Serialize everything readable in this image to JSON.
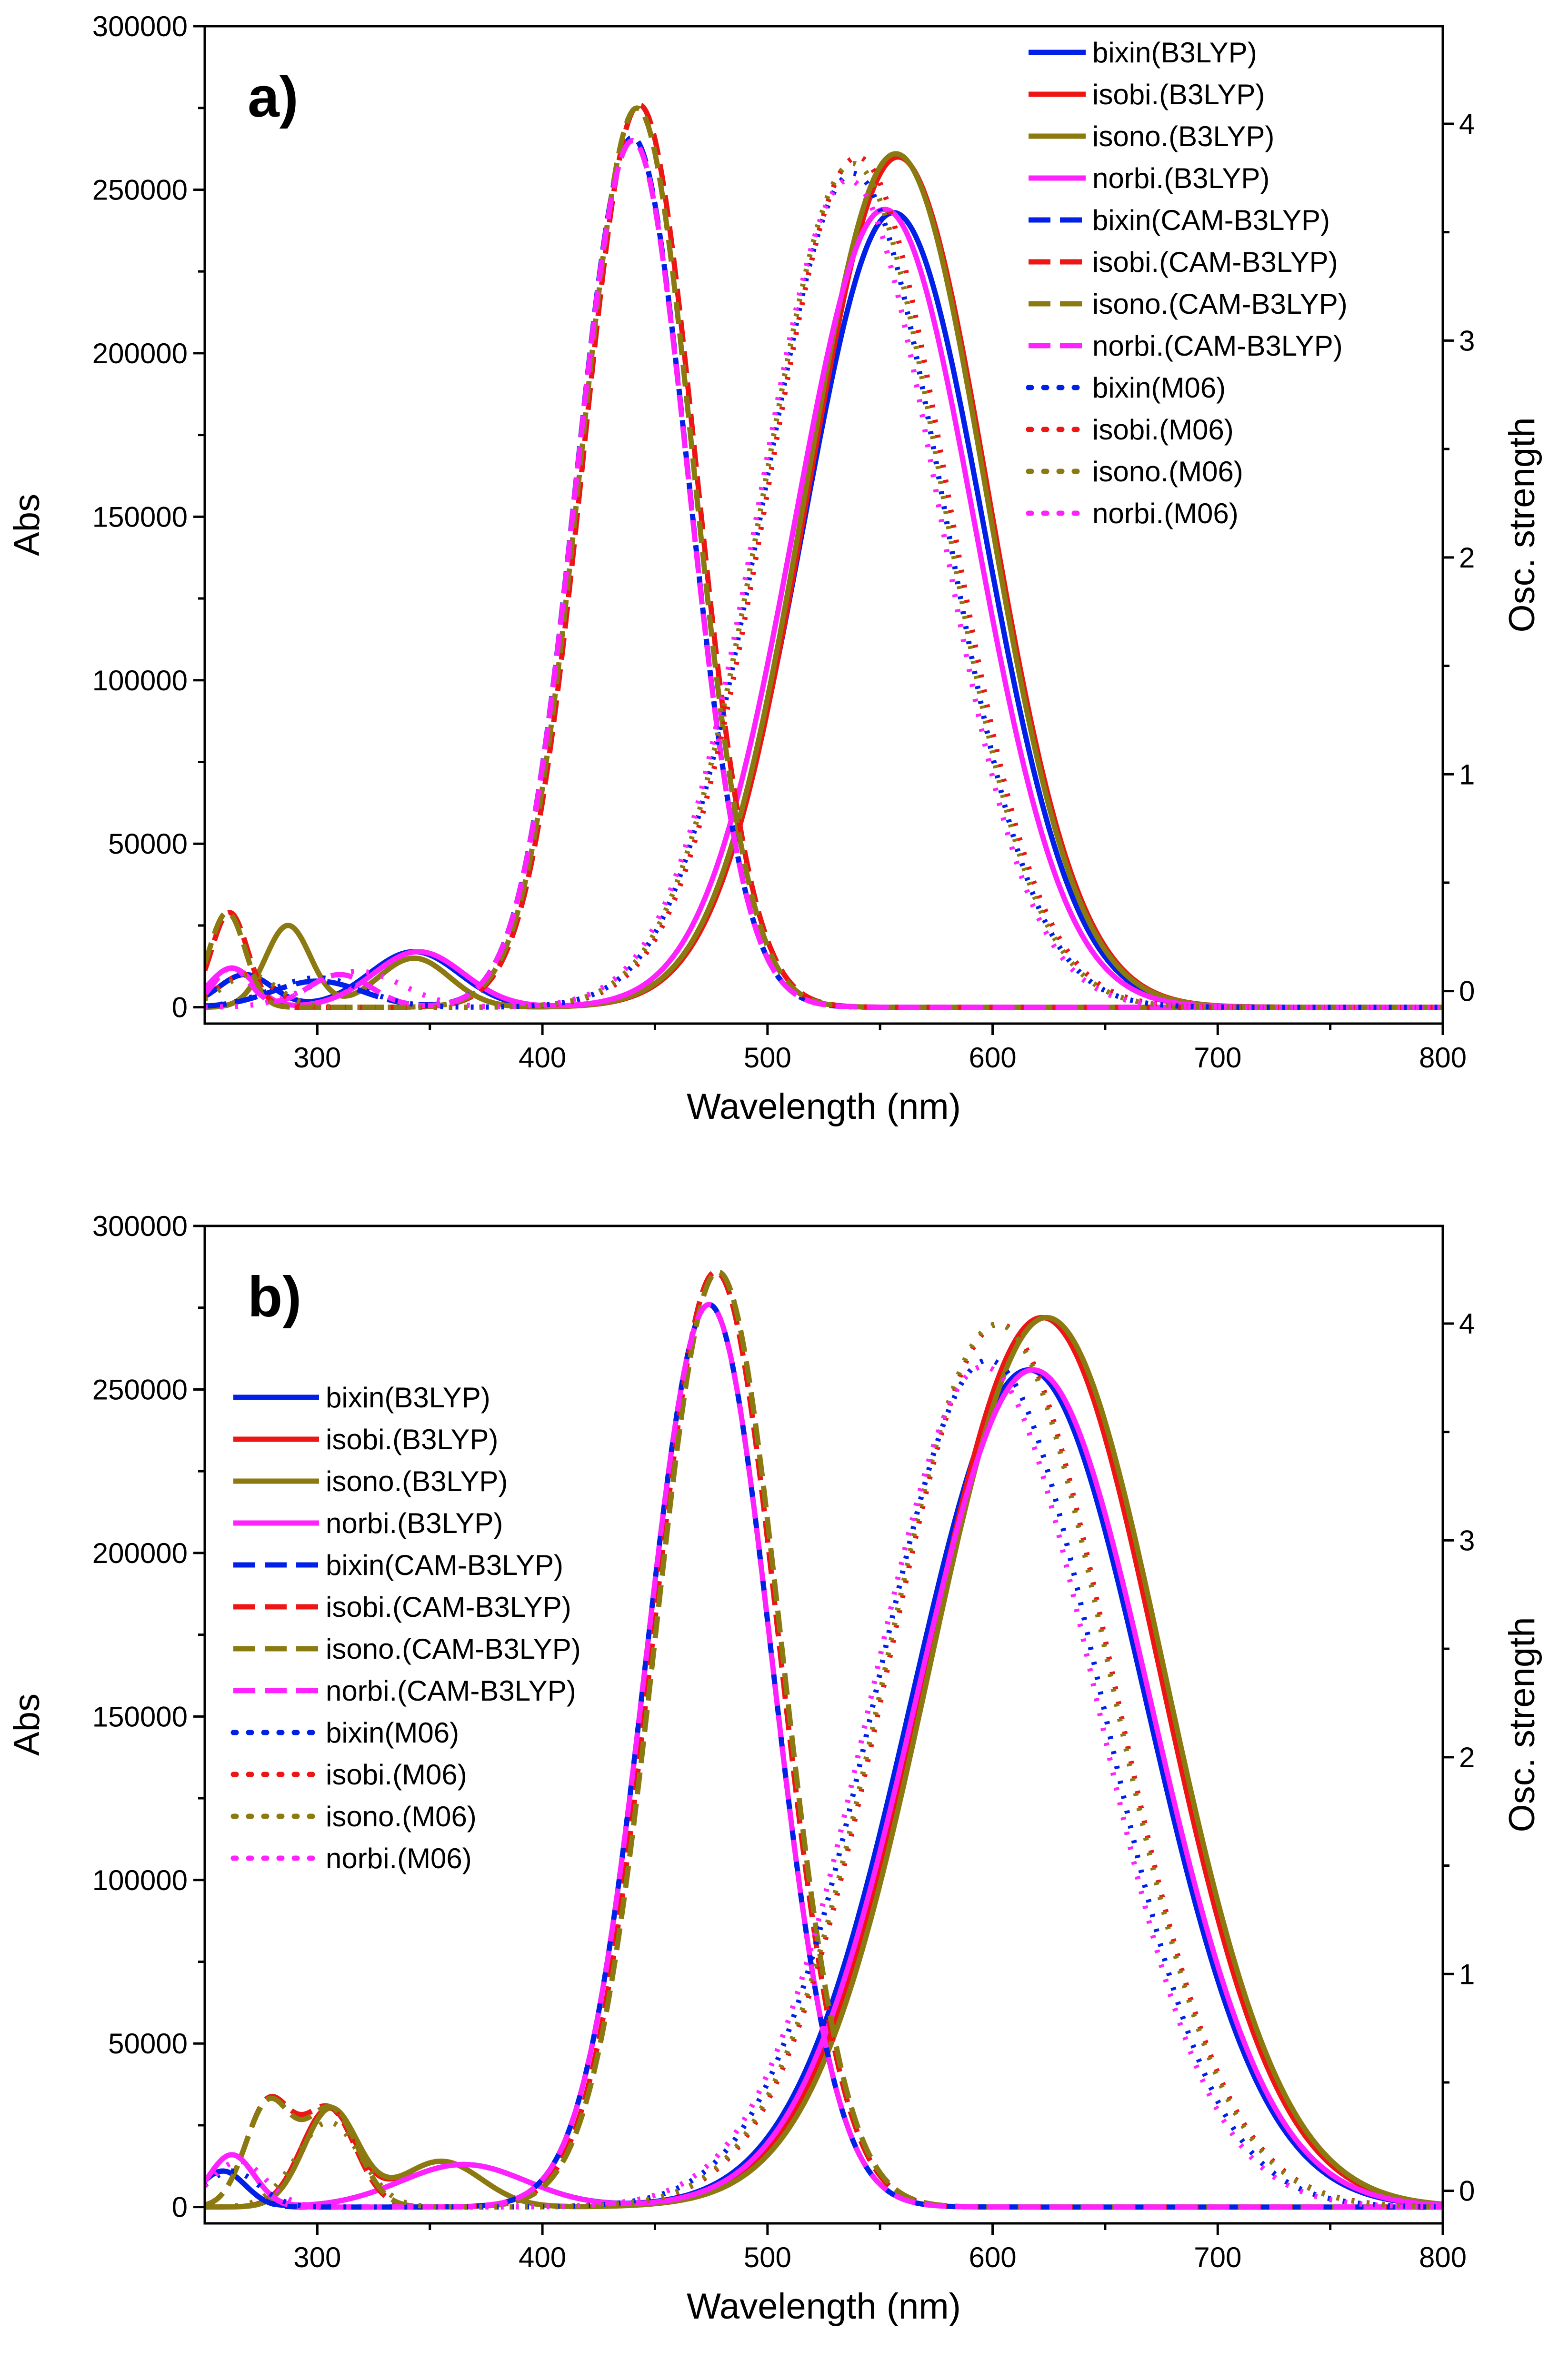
{
  "chart_data": [
    {
      "panel_label": "a)",
      "type": "line",
      "xlabel": "Wavelength (nm)",
      "ylabel": "Abs",
      "y2label": "Osc. strength",
      "xlim": [
        250,
        800
      ],
      "ylim": [
        -5000,
        300000
      ],
      "y2lim": [
        -0.15,
        4.45
      ],
      "xticks": [
        300,
        400,
        500,
        600,
        700,
        800
      ],
      "xtick_labels": [
        "300",
        "400",
        "500",
        "600",
        "700",
        "800"
      ],
      "yticks": [
        0,
        50000,
        100000,
        150000,
        200000,
        250000,
        300000
      ],
      "ytick_labels": [
        "0",
        "50000",
        "100000",
        "150000",
        "200000",
        "250000",
        "300000"
      ],
      "y2ticks": [
        0,
        1,
        2,
        3,
        4
      ],
      "y2tick_labels": [
        "0",
        "1",
        "2",
        "3",
        "4"
      ],
      "legend_position": "top-right",
      "series": [
        {
          "name": "bixin(B3LYP)",
          "method": "B3LYP",
          "molecule": "bixin",
          "peaks": [
            [
              556,
              243000,
              40
            ],
            [
              343,
              17000,
              20
            ],
            [
              268,
              10000,
              12
            ]
          ]
        },
        {
          "name": "isobi.(B3LYP)",
          "method": "B3LYP",
          "molecule": "isobi",
          "peaks": [
            [
              558,
              260000,
              40
            ],
            [
              287,
              25000,
              10
            ],
            [
              343,
              15000,
              16
            ]
          ]
        },
        {
          "name": "isono.(B3LYP)",
          "method": "B3LYP",
          "molecule": "isono",
          "peaks": [
            [
              557,
              261000,
              40
            ],
            [
              287,
              25000,
              10
            ],
            [
              343,
              15000,
              16
            ]
          ]
        },
        {
          "name": "norbi.(B3LYP)",
          "method": "B3LYP",
          "molecule": "norbi",
          "peaks": [
            [
              552,
              244000,
              40
            ],
            [
              345,
              17000,
              20
            ],
            [
              262,
              12000,
              10
            ]
          ]
        },
        {
          "name": "bixin(CAM-B3LYP)",
          "method": "CAM-B3LYP",
          "molecule": "bixin",
          "peaks": [
            [
              440,
              266000,
              25
            ],
            [
              300,
              8000,
              20
            ]
          ]
        },
        {
          "name": "isobi.(CAM-B3LYP)",
          "method": "CAM-B3LYP",
          "molecule": "isobi",
          "peaks": [
            [
              443,
              276000,
              25
            ],
            [
              261,
              29000,
              8
            ]
          ]
        },
        {
          "name": "isono.(CAM-B3LYP)",
          "method": "CAM-B3LYP",
          "molecule": "isono",
          "peaks": [
            [
              442,
              275000,
              25
            ],
            [
              260,
              29000,
              8
            ]
          ]
        },
        {
          "name": "norbi.(CAM-B3LYP)",
          "method": "CAM-B3LYP",
          "molecule": "norbi",
          "peaks": [
            [
              440,
              265000,
              25
            ],
            [
              262,
              12000,
              8
            ],
            [
              310,
              10000,
              14
            ]
          ]
        },
        {
          "name": "bixin(M06)",
          "method": "M06",
          "molecule": "bixin",
          "peaks": [
            [
              538,
              255000,
              40
            ],
            [
              300,
              9000,
              20
            ]
          ]
        },
        {
          "name": "isobi.(M06)",
          "method": "M06",
          "molecule": "isobi",
          "peaks": [
            [
              540,
              260000,
              40
            ],
            [
              268,
              10000,
              12
            ]
          ]
        },
        {
          "name": "isono.(M06)",
          "method": "M06",
          "molecule": "isono",
          "peaks": [
            [
              538,
              258000,
              40
            ],
            [
              270,
              10000,
              12
            ]
          ]
        },
        {
          "name": "norbi.(M06)",
          "method": "M06",
          "molecule": "norbi",
          "peaks": [
            [
              536,
              253000,
              40
            ],
            [
              318,
              11000,
              20
            ]
          ]
        }
      ]
    },
    {
      "panel_label": "b)",
      "type": "line",
      "xlabel": "Wavelength (nm)",
      "ylabel": "Abs",
      "y2label": "Osc. strength",
      "xlim": [
        250,
        800
      ],
      "ylim": [
        -5000,
        300000
      ],
      "y2lim": [
        -0.15,
        4.45
      ],
      "xticks": [
        300,
        400,
        500,
        600,
        700,
        800
      ],
      "xtick_labels": [
        "300",
        "400",
        "500",
        "600",
        "700",
        "800"
      ],
      "yticks": [
        0,
        50000,
        100000,
        150000,
        200000,
        250000,
        300000
      ],
      "ytick_labels": [
        "0",
        "50000",
        "100000",
        "150000",
        "200000",
        "250000",
        "300000"
      ],
      "y2ticks": [
        0,
        1,
        2,
        3,
        4
      ],
      "y2tick_labels": [
        "0",
        "1",
        "2",
        "3",
        "4"
      ],
      "legend_position": "middle-left",
      "series": [
        {
          "name": "bixin(B3LYP)",
          "method": "B3LYP",
          "molecule": "bixin",
          "peaks": [
            [
              616,
              256000,
              52
            ],
            [
              258,
              11000,
              10
            ],
            [
              365,
              13000,
              28
            ]
          ]
        },
        {
          "name": "isobi.(B3LYP)",
          "method": "B3LYP",
          "molecule": "isobi",
          "peaks": [
            [
              622,
              272000,
              52
            ],
            [
              305,
              30000,
              12
            ],
            [
              355,
              14000,
              18
            ]
          ]
        },
        {
          "name": "isono.(B3LYP)",
          "method": "B3LYP",
          "molecule": "isono",
          "peaks": [
            [
              624,
              272000,
              52
            ],
            [
              306,
              30000,
              12
            ],
            [
              355,
              14000,
              18
            ]
          ]
        },
        {
          "name": "norbi.(B3LYP)",
          "method": "B3LYP",
          "molecule": "norbi",
          "peaks": [
            [
              618,
              256000,
              52
            ],
            [
              262,
              16000,
              10
            ],
            [
              365,
              13000,
              28
            ]
          ]
        },
        {
          "name": "bixin(CAM-B3LYP)",
          "method": "CAM-B3LYP",
          "molecule": "bixin",
          "peaks": [
            [
              474,
              276000,
              28
            ],
            [
              258,
              11000,
              10
            ]
          ]
        },
        {
          "name": "isobi.(CAM-B3LYP)",
          "method": "CAM-B3LYP",
          "molecule": "isobi",
          "peaks": [
            [
              477,
              286000,
              28
            ],
            [
              278,
              31000,
              10
            ],
            [
              305,
              30000,
              12
            ]
          ]
        },
        {
          "name": "isono.(CAM-B3LYP)",
          "method": "CAM-B3LYP",
          "molecule": "isono",
          "peaks": [
            [
              478,
              286000,
              28
            ],
            [
              278,
              31000,
              10
            ],
            [
              306,
              30000,
              12
            ]
          ]
        },
        {
          "name": "norbi.(CAM-B3LYP)",
          "method": "CAM-B3LYP",
          "molecule": "norbi",
          "peaks": [
            [
              474,
              276000,
              28
            ],
            [
              262,
              16000,
              10
            ]
          ]
        },
        {
          "name": "bixin(M06)",
          "method": "M06",
          "molecule": "bixin",
          "peaks": [
            [
              598,
              259000,
              50
            ],
            [
              262,
              11000,
              12
            ]
          ]
        },
        {
          "name": "isobi.(M06)",
          "method": "M06",
          "molecule": "isobi",
          "peaks": [
            [
              603,
              270000,
              50
            ],
            [
              305,
              26000,
              14
            ]
          ]
        },
        {
          "name": "isono.(M06)",
          "method": "M06",
          "molecule": "isono",
          "peaks": [
            [
              602,
              270000,
              50
            ],
            [
              305,
              26000,
              14
            ]
          ]
        },
        {
          "name": "norbi.(M06)",
          "method": "M06",
          "molecule": "norbi",
          "peaks": [
            [
              596,
              257000,
              50
            ],
            [
              265,
              14000,
              12
            ]
          ]
        }
      ]
    }
  ],
  "colors": {
    "bixin": "#0020e8",
    "isobi": "#ee1515",
    "isono": "#8a7a10",
    "norbi": "#ff22ff"
  }
}
